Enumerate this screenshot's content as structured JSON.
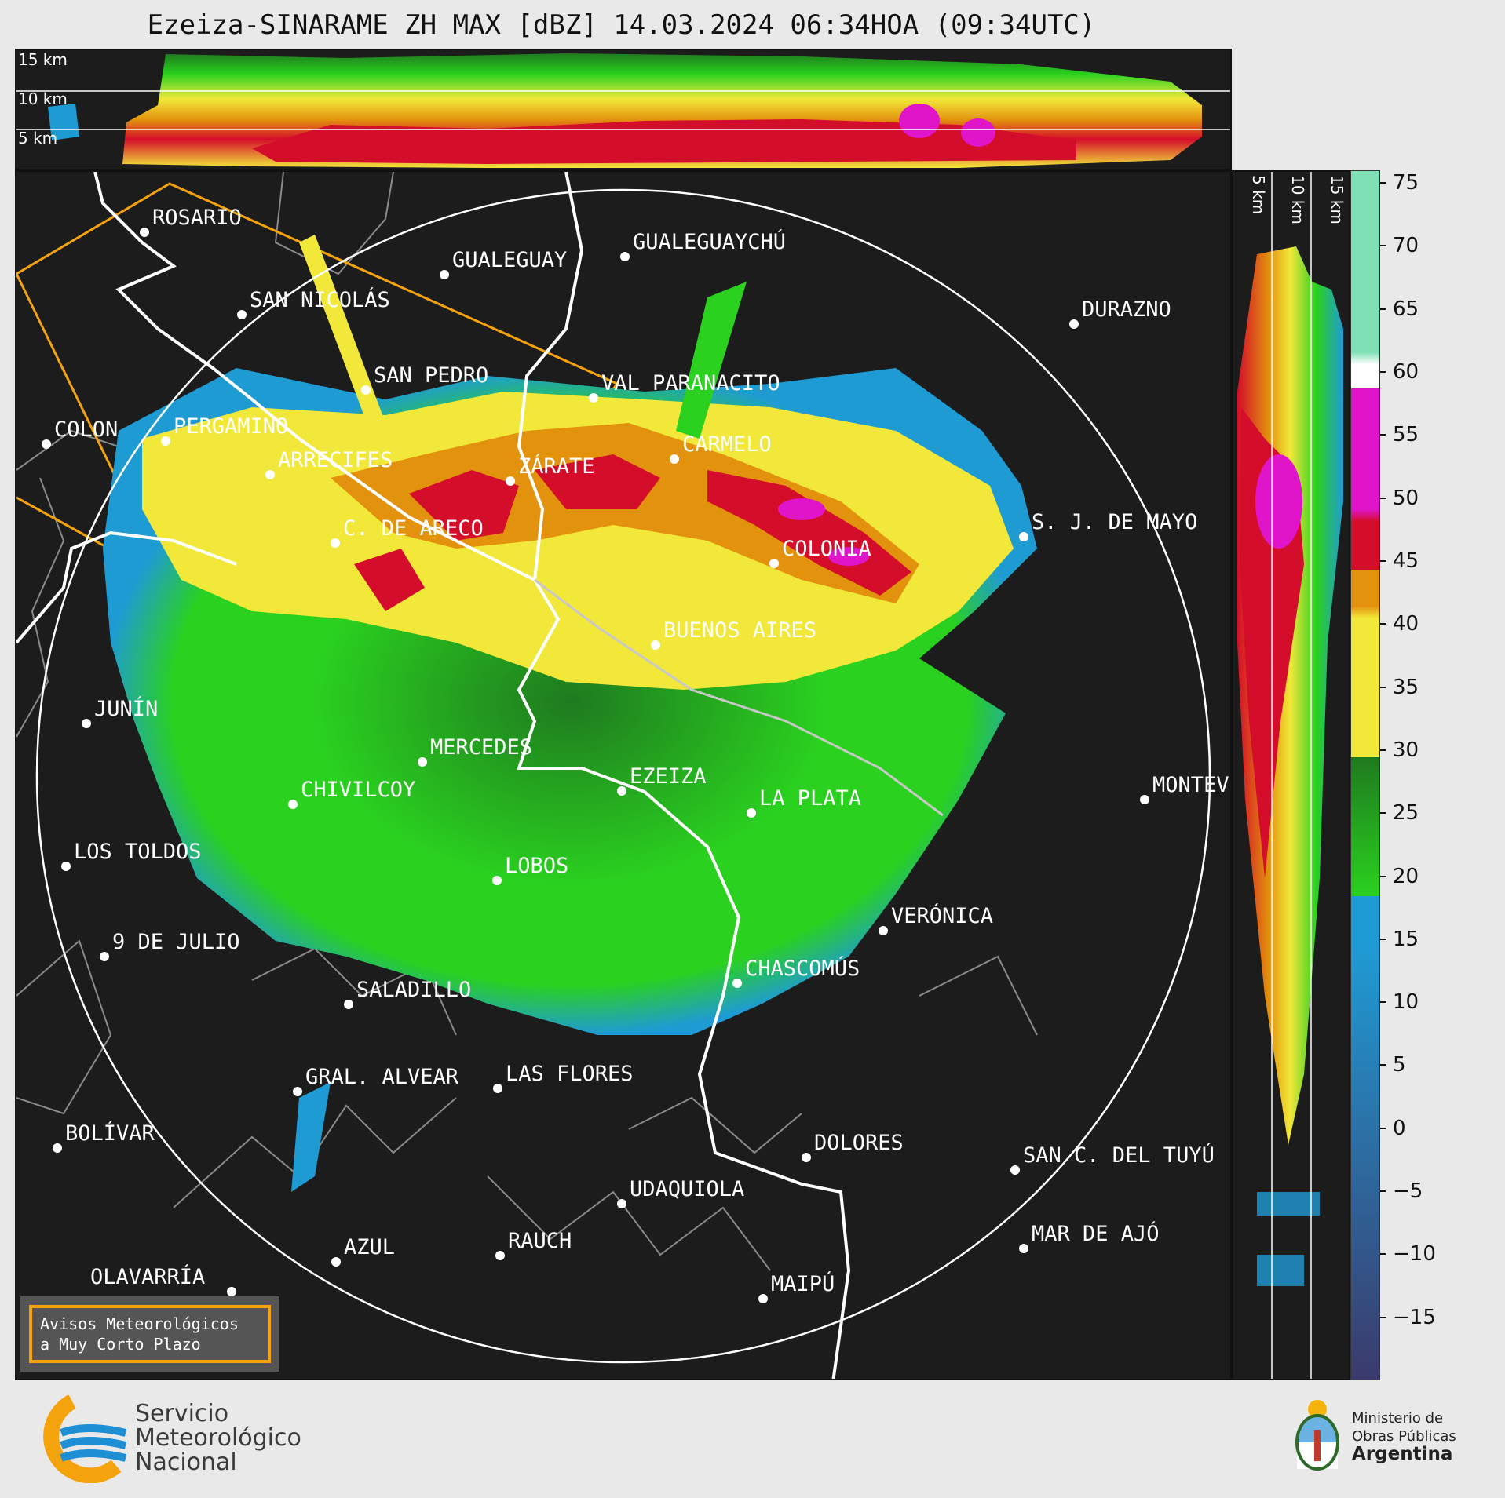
{
  "title": "Ezeiza-SINARAME ZH MAX [dBZ] 14.03.2024 06:34HOA (09:34UTC)",
  "height_labels": [
    "15 km",
    "10 km",
    "5 km"
  ],
  "colorbar": {
    "unit": "dBZ",
    "ticks": [
      "75",
      "70",
      "65",
      "60",
      "55",
      "50",
      "45",
      "40",
      "35",
      "30",
      "25",
      "20",
      "15",
      "10",
      "5",
      "0",
      "−5",
      "−10",
      "−15"
    ],
    "min": -20,
    "max": 76,
    "colors": {
      "low": "#3b3a6b",
      "blue": "#1f9bd4",
      "green": "#2ad11f",
      "darkgreen": "#1f7a1f",
      "yellow": "#f2e83a",
      "orange": "#e3920e",
      "red": "#d40d2a",
      "magenta": "#e014c9",
      "white": "#ffffff",
      "mint": "#7fe0b5"
    }
  },
  "cities": [
    {
      "name": "ROSARIO"
    },
    {
      "name": "GUALEGUAYCHÚ"
    },
    {
      "name": "GUALEGUAY"
    },
    {
      "name": "SAN NICOLÁS"
    },
    {
      "name": "DURAZNO"
    },
    {
      "name": "SAN PEDRO"
    },
    {
      "name": "VAL PARANACITO"
    },
    {
      "name": "COLON"
    },
    {
      "name": "PERGAMINO"
    },
    {
      "name": "CARMELO"
    },
    {
      "name": "ARRECIFES"
    },
    {
      "name": "ZÁRATE"
    },
    {
      "name": "C. DE ARECO"
    },
    {
      "name": "S. J. DE MAYO"
    },
    {
      "name": "COLONIA"
    },
    {
      "name": "JUNÍN"
    },
    {
      "name": "BUENOS AIRES"
    },
    {
      "name": "MERCEDES"
    },
    {
      "name": "MONTEVIDEO"
    },
    {
      "name": "EZEIZA"
    },
    {
      "name": "CHIVILCOY"
    },
    {
      "name": "LA PLATA"
    },
    {
      "name": "LOS TOLDOS"
    },
    {
      "name": "LOBOS"
    },
    {
      "name": "VERÓNICA"
    },
    {
      "name": "9 DE JULIO"
    },
    {
      "name": "CHASCOMÚS"
    },
    {
      "name": "SALADILLO"
    },
    {
      "name": "GRAL. ALVEAR"
    },
    {
      "name": "LAS FLORES"
    },
    {
      "name": "BOLÍVAR"
    },
    {
      "name": "DOLORES"
    },
    {
      "name": "SAN C. DEL TUYÚ"
    },
    {
      "name": "UDAQUIOLA"
    },
    {
      "name": "MAR DE AJÓ"
    },
    {
      "name": "RAUCH"
    },
    {
      "name": "AZUL"
    },
    {
      "name": "OLAVARRÍA"
    },
    {
      "name": "MAIPÚ"
    }
  ],
  "legend": {
    "line1": "Avisos Meteorológicos",
    "line2": "a Muy Corto Plazo",
    "color": "#f5a30d"
  },
  "logos": {
    "smn": {
      "line1": "Servicio",
      "line2": "Meteorológico",
      "line3": "Nacional"
    },
    "ministry": {
      "line1": "Ministerio de",
      "line2": "Obras Públicas",
      "line3": "Argentina"
    }
  }
}
